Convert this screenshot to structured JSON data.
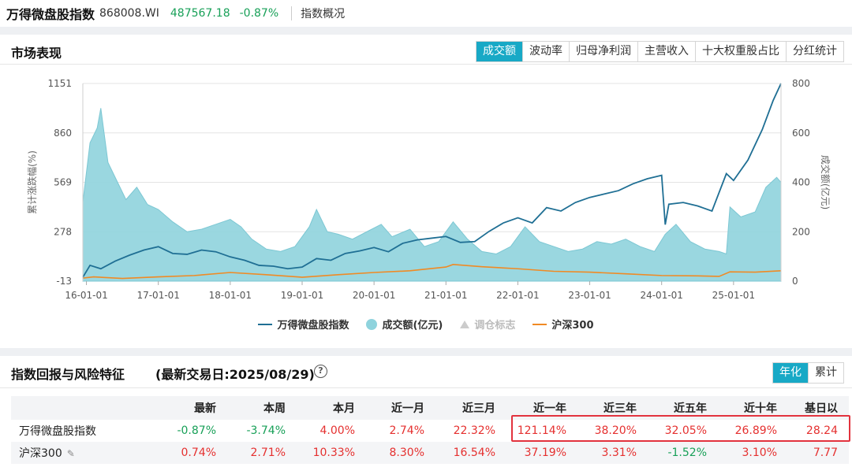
{
  "header": {
    "name": "万得微盘股指数",
    "code": "868008.WI",
    "price": "487567.18",
    "change": "-0.87%",
    "overview_link": "指数概况"
  },
  "market": {
    "title": "市场表现",
    "tabs": [
      {
        "label": "成交额",
        "active": true
      },
      {
        "label": "波动率",
        "active": false
      },
      {
        "label": "归母净利润",
        "active": false
      },
      {
        "label": "主营收入",
        "active": false
      },
      {
        "label": "十大权重股占比",
        "active": false
      },
      {
        "label": "分红统计",
        "active": false
      }
    ],
    "legend": {
      "index": "万得微盘股指数",
      "turnover": "成交额(亿元)",
      "rebalance": "调仓标志",
      "csi300": "沪深300"
    },
    "colors": {
      "index": "#1f6f94",
      "turnover": "#8fd3dd",
      "csi300": "#f08a24",
      "accent": "#18a9c6"
    }
  },
  "chart_data": {
    "type": "line",
    "ylabel_left": "累计涨跌幅(%)",
    "ylabel_right": "成交额(亿元)",
    "y_left_ticks": [
      "1151",
      "860",
      "569",
      "278",
      "-13"
    ],
    "y_right_ticks": [
      "800",
      "600",
      "400",
      "200",
      "0"
    ],
    "ylim_left": [
      -13,
      1151
    ],
    "ylim_right": [
      0,
      800
    ],
    "x_tick_labels": [
      "16-01-01",
      "17-01-01",
      "18-01-01",
      "19-01-01",
      "20-01-01",
      "21-01-01",
      "22-01-01",
      "23-01-01",
      "24-01-01",
      "25-01-01"
    ],
    "x_ticks": [
      2016,
      2017,
      2018,
      2019,
      2020,
      2021,
      2022,
      2023,
      2024,
      2025
    ],
    "xlim": [
      2015.95,
      2025.66
    ],
    "series": [
      {
        "name": "万得微盘股指数",
        "x": [
          2015.95,
          2016.05,
          2016.2,
          2016.4,
          2016.6,
          2016.8,
          2017.0,
          2017.2,
          2017.4,
          2017.6,
          2017.8,
          2018.0,
          2018.2,
          2018.4,
          2018.6,
          2018.8,
          2019.0,
          2019.2,
          2019.4,
          2019.6,
          2019.8,
          2020.0,
          2020.2,
          2020.4,
          2020.6,
          2020.8,
          2021.0,
          2021.2,
          2021.4,
          2021.6,
          2021.8,
          2022.0,
          2022.2,
          2022.4,
          2022.6,
          2022.8,
          2023.0,
          2023.2,
          2023.4,
          2023.6,
          2023.8,
          2024.0,
          2024.05,
          2024.1,
          2024.3,
          2024.5,
          2024.7,
          2024.9,
          2025.0,
          2025.2,
          2025.4,
          2025.55,
          2025.66
        ],
        "values": [
          10,
          80,
          60,
          105,
          140,
          170,
          190,
          150,
          145,
          170,
          160,
          130,
          110,
          80,
          75,
          60,
          70,
          120,
          110,
          150,
          165,
          185,
          160,
          210,
          230,
          240,
          250,
          215,
          220,
          280,
          330,
          360,
          330,
          420,
          400,
          450,
          480,
          500,
          520,
          560,
          590,
          610,
          320,
          440,
          450,
          430,
          400,
          620,
          580,
          700,
          880,
          1050,
          1151
        ]
      },
      {
        "name": "成交额(亿元)",
        "x": [
          2015.95,
          2016.05,
          2016.15,
          2016.2,
          2016.3,
          2016.4,
          2016.55,
          2016.7,
          2016.85,
          2017.0,
          2017.2,
          2017.4,
          2017.6,
          2017.8,
          2018.0,
          2018.15,
          2018.3,
          2018.5,
          2018.7,
          2018.9,
          2019.1,
          2019.2,
          2019.35,
          2019.5,
          2019.7,
          2019.9,
          2020.1,
          2020.25,
          2020.5,
          2020.7,
          2020.9,
          2021.1,
          2021.3,
          2021.5,
          2021.7,
          2021.9,
          2022.1,
          2022.3,
          2022.5,
          2022.7,
          2022.9,
          2023.1,
          2023.3,
          2023.5,
          2023.7,
          2023.9,
          2024.05,
          2024.2,
          2024.4,
          2024.6,
          2024.8,
          2024.9,
          2024.95,
          2025.1,
          2025.3,
          2025.45,
          2025.6,
          2025.66
        ],
        "values": [
          320,
          560,
          620,
          700,
          480,
          420,
          330,
          380,
          310,
          290,
          240,
          200,
          210,
          230,
          250,
          220,
          170,
          130,
          120,
          140,
          220,
          290,
          200,
          190,
          170,
          200,
          230,
          180,
          210,
          140,
          160,
          240,
          170,
          120,
          110,
          140,
          220,
          160,
          140,
          120,
          130,
          160,
          150,
          170,
          140,
          120,
          190,
          230,
          160,
          130,
          120,
          110,
          300,
          260,
          280,
          380,
          420,
          400
        ]
      },
      {
        "name": "沪深300",
        "x": [
          2015.95,
          2016.1,
          2016.5,
          2017.0,
          2017.5,
          2018.0,
          2018.5,
          2019.0,
          2019.5,
          2020.0,
          2020.5,
          2021.0,
          2021.1,
          2021.5,
          2022.0,
          2022.5,
          2023.0,
          2023.5,
          2024.0,
          2024.5,
          2024.8,
          2024.95,
          2025.3,
          2025.66
        ],
        "values": [
          5,
          12,
          3,
          12,
          20,
          38,
          25,
          10,
          25,
          38,
          48,
          70,
          85,
          72,
          60,
          45,
          40,
          30,
          20,
          18,
          15,
          42,
          40,
          48
        ]
      }
    ]
  },
  "returns": {
    "title": "指数回报与风险特征",
    "subtitle": "(最新交易日:2025/08/29)",
    "help_icon": "question-icon",
    "tabs": [
      {
        "label": "年化",
        "active": true
      },
      {
        "label": "累计",
        "active": false
      }
    ],
    "columns": [
      "最新",
      "本周",
      "本月",
      "近一月",
      "近三月",
      "近一年",
      "近三年",
      "近五年",
      "近十年",
      "基日以"
    ],
    "rows": [
      {
        "name": "万得微盘股指数",
        "values": [
          "-0.87%",
          "-3.74%",
          "4.00%",
          "2.74%",
          "22.32%",
          "121.14%",
          "38.20%",
          "32.05%",
          "26.89%",
          "28.24"
        ],
        "signs": [
          "down",
          "down",
          "up",
          "up",
          "up",
          "up",
          "up",
          "up",
          "up",
          "up"
        ]
      },
      {
        "name": "沪深300",
        "values": [
          "0.74%",
          "2.71%",
          "10.33%",
          "8.30%",
          "16.54%",
          "37.19%",
          "3.31%",
          "-1.52%",
          "3.10%",
          "7.77"
        ],
        "signs": [
          "up",
          "up",
          "up",
          "up",
          "up",
          "up",
          "up",
          "down",
          "up",
          "up"
        ]
      }
    ]
  }
}
